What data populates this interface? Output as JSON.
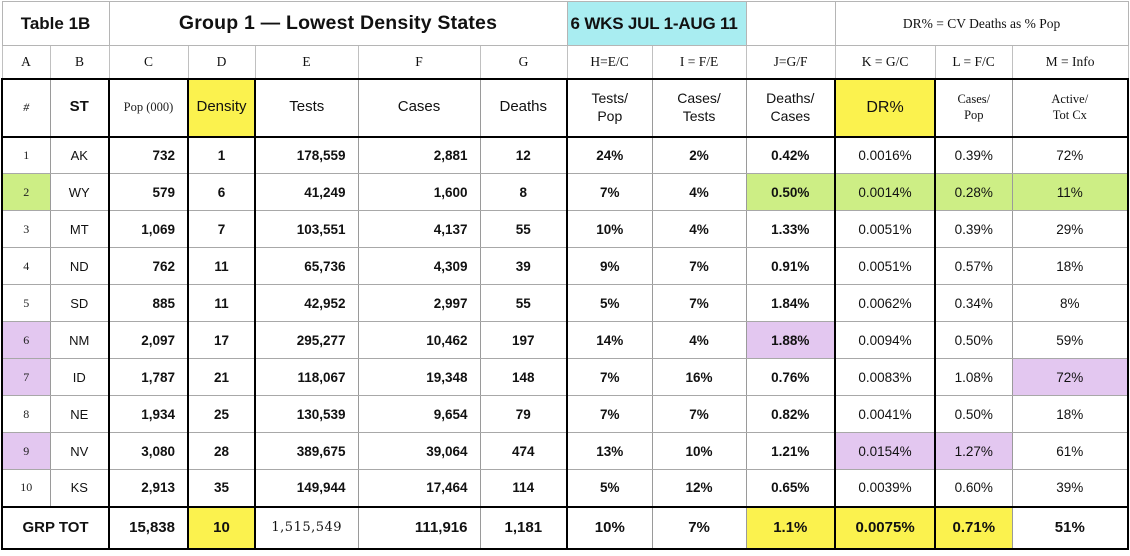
{
  "chart_data": {
    "type": "table",
    "title": "Table 1B",
    "subtitle": "Group 1 — Lowest Density States",
    "period_banner": "6 WKS JUL 1-AUG 11",
    "note": "DR% = CV Deaths as % Pop",
    "column_letters": [
      "A",
      "B",
      "C",
      "D",
      "E",
      "F",
      "G",
      "H=E/C",
      "I = F/E",
      "J=G/F",
      "K = G/C",
      "L = F/C",
      "M = Info"
    ],
    "column_headers": [
      "#",
      "ST",
      "Pop (000)",
      "Density",
      "Tests",
      "Cases",
      "Deaths",
      "Tests/\nPop",
      "Cases/\nTests",
      "Deaths/\nCases",
      "DR%",
      "Cases/\nPop",
      "Active/\nTot Cx"
    ],
    "header_highlights": {
      "3": "yellow",
      "10": "yellow"
    },
    "rows": [
      {
        "cells": [
          "1",
          "AK",
          "732",
          "1",
          "178,559",
          "2,881",
          "12",
          "24%",
          "2%",
          "0.42%",
          "0.0016%",
          "0.39%",
          "72%"
        ],
        "highlights": {}
      },
      {
        "cells": [
          "2",
          "WY",
          "579",
          "6",
          "41,249",
          "1,600",
          "8",
          "7%",
          "4%",
          "0.50%",
          "0.0014%",
          "0.28%",
          "11%"
        ],
        "highlights": {
          "0": "green",
          "9": "green",
          "10": "green",
          "11": "green",
          "12": "green"
        }
      },
      {
        "cells": [
          "3",
          "MT",
          "1,069",
          "7",
          "103,551",
          "4,137",
          "55",
          "10%",
          "4%",
          "1.33%",
          "0.0051%",
          "0.39%",
          "29%"
        ],
        "highlights": {}
      },
      {
        "cells": [
          "4",
          "ND",
          "762",
          "11",
          "65,736",
          "4,309",
          "39",
          "9%",
          "7%",
          "0.91%",
          "0.0051%",
          "0.57%",
          "18%"
        ],
        "highlights": {}
      },
      {
        "cells": [
          "5",
          "SD",
          "885",
          "11",
          "42,952",
          "2,997",
          "55",
          "5%",
          "7%",
          "1.84%",
          "0.0062%",
          "0.34%",
          "8%"
        ],
        "highlights": {}
      },
      {
        "cells": [
          "6",
          "NM",
          "2,097",
          "17",
          "295,277",
          "10,462",
          "197",
          "14%",
          "4%",
          "1.88%",
          "0.0094%",
          "0.50%",
          "59%"
        ],
        "highlights": {
          "0": "purple",
          "9": "purple"
        }
      },
      {
        "cells": [
          "7",
          "ID",
          "1,787",
          "21",
          "118,067",
          "19,348",
          "148",
          "7%",
          "16%",
          "0.76%",
          "0.0083%",
          "1.08%",
          "72%"
        ],
        "highlights": {
          "0": "purple",
          "12": "purple"
        }
      },
      {
        "cells": [
          "8",
          "NE",
          "1,934",
          "25",
          "130,539",
          "9,654",
          "79",
          "7%",
          "7%",
          "0.82%",
          "0.0041%",
          "0.50%",
          "18%"
        ],
        "highlights": {}
      },
      {
        "cells": [
          "9",
          "NV",
          "3,080",
          "28",
          "389,675",
          "39,064",
          "474",
          "13%",
          "10%",
          "1.21%",
          "0.0154%",
          "1.27%",
          "61%"
        ],
        "highlights": {
          "0": "purple",
          "10": "purple",
          "11": "purple"
        }
      },
      {
        "cells": [
          "10",
          "KS",
          "2,913",
          "35",
          "149,944",
          "17,464",
          "114",
          "5%",
          "12%",
          "0.65%",
          "0.0039%",
          "0.60%",
          "39%"
        ],
        "highlights": {}
      }
    ],
    "total_row": {
      "label": "GRP TOT",
      "cells": [
        "15,838",
        "10",
        "1,515,549",
        "111,916",
        "1,181",
        "10%",
        "7%",
        "1.1%",
        "0.0075%",
        "0.71%",
        "51%"
      ],
      "highlights": {
        "3": "yellow",
        "9": "yellow",
        "10": "yellow",
        "11": "yellow"
      }
    },
    "colors": {
      "yellow": "#fbf24e",
      "green": "#cdee85",
      "purple": "#e3c7f0",
      "cyan": "#a9edf1"
    }
  }
}
